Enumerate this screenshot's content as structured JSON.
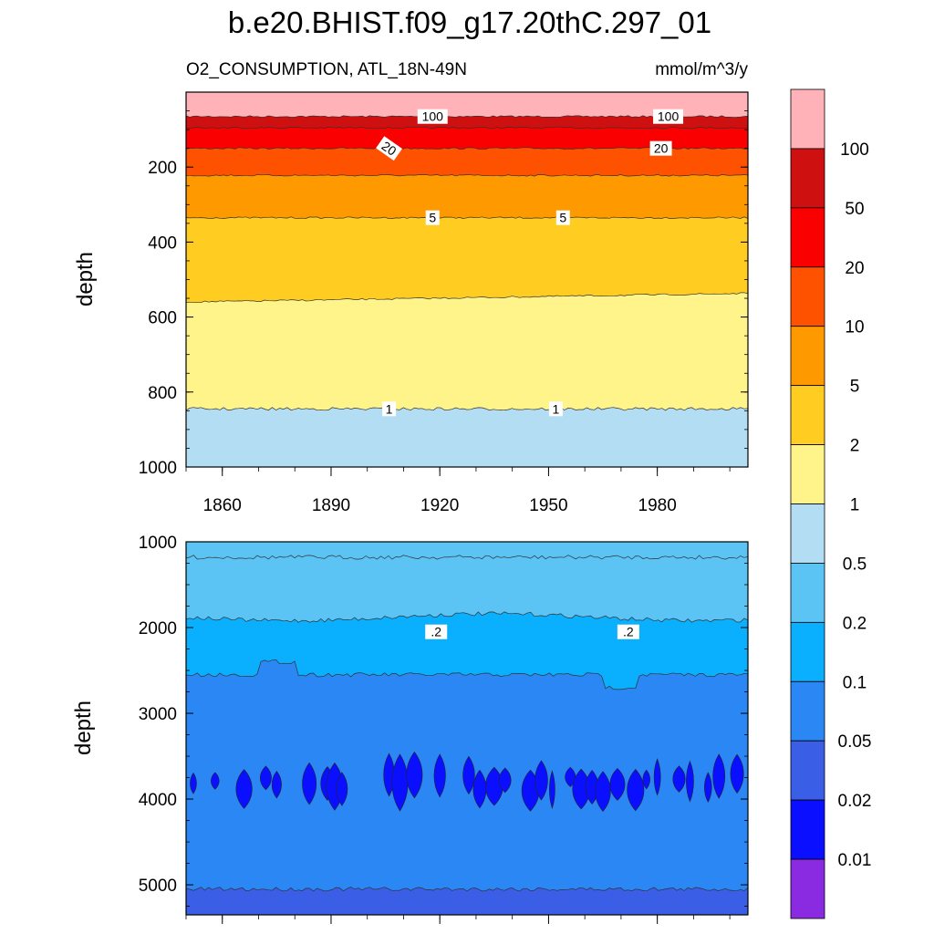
{
  "title": "b.e20.BHIST.f09_g17.20thC.297_01",
  "left_subtitle": "O2_CONSUMPTION, ATL_18N-49N",
  "right_subtitle": "mmol/m^3/y",
  "colorbar": {
    "labels": [
      "100",
      "50",
      "20",
      "10",
      "5",
      "2",
      "1",
      "0.5",
      "0.2",
      "0.1",
      "0.05",
      "0.02",
      "0.01"
    ],
    "colors_top_to_bottom": [
      "#ffb3b8",
      "#cf1010",
      "#fb0000",
      "#ff5200",
      "#ff9900",
      "#ffcc22",
      "#fff48a",
      "#b3ddf2",
      "#5bc4f4",
      "#0aaffe",
      "#2a87f4",
      "#3a5ee6",
      "#0a10ff",
      "#8a2be2"
    ]
  },
  "chart_data": [
    {
      "type": "contour",
      "name": "upper panel",
      "xlabel": "",
      "ylabel": "depth",
      "xlim": [
        1850,
        2005
      ],
      "ylim": [
        1000,
        0
      ],
      "xticks": [
        1860,
        1890,
        1920,
        1950,
        1980
      ],
      "xtick_labels": [
        "1860",
        "1890",
        "1920",
        "1950",
        "1980"
      ],
      "yticks": [
        200,
        400,
        600,
        800,
        1000
      ],
      "ytick_labels": [
        "200",
        "400",
        "600",
        "800",
        "1000"
      ],
      "level_boundary_depths": [
        {
          "level": 100,
          "depth": 65
        },
        {
          "level": 50,
          "depth": 95
        },
        {
          "level": 20,
          "depth": 150
        },
        {
          "level": 10,
          "depth": 222
        },
        {
          "level": 5,
          "depth": 335
        },
        {
          "level": 2,
          "depth": 560
        },
        {
          "level": 1,
          "depth": 845
        }
      ],
      "contour_labels": [
        {
          "text": "100",
          "x": 1918,
          "depth": 65
        },
        {
          "text": "100",
          "x": 1983,
          "depth": 65
        },
        {
          "text": "20",
          "x": 1906,
          "depth": 150
        },
        {
          "text": "20",
          "x": 1981,
          "depth": 150
        },
        {
          "text": "5",
          "x": 1918,
          "depth": 335
        },
        {
          "text": "5",
          "x": 1954,
          "depth": 335
        },
        {
          "text": "1",
          "x": 1906,
          "depth": 845
        },
        {
          "text": "1",
          "x": 1952,
          "depth": 845
        }
      ]
    },
    {
      "type": "contour",
      "name": "lower panel",
      "xlabel": "",
      "ylabel": "depth",
      "xlim": [
        1850,
        2005
      ],
      "ylim": [
        5350,
        1000
      ],
      "yticks": [
        1000,
        2000,
        3000,
        4000,
        5000
      ],
      "ytick_labels": [
        "1000",
        "2000",
        "3000",
        "4000",
        "5000"
      ],
      "level_boundary_depths": [
        {
          "level": 0.5,
          "depth": 1180
        },
        {
          "level": 0.2,
          "depth": 1900
        },
        {
          "level": 0.1,
          "depth": 2550
        },
        {
          "level": 0.05,
          "depth": 5050
        }
      ],
      "patches_0.02_0.05": {
        "depth_range": [
          3450,
          4150
        ],
        "note": "many narrow vertical blobs"
      },
      "contour_labels": [
        {
          "text": ".2",
          "x": 1919,
          "depth": 2050
        },
        {
          "text": ".2",
          "x": 1972,
          "depth": 2050
        }
      ]
    }
  ]
}
